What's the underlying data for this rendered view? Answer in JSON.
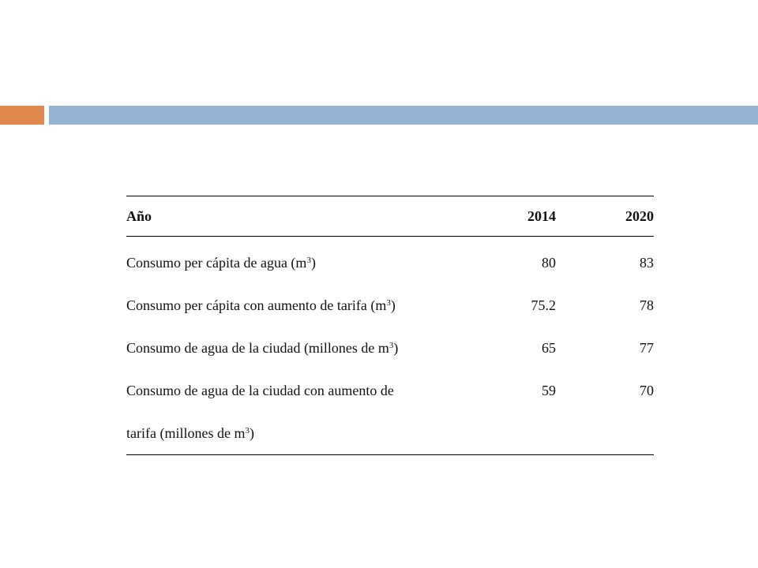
{
  "colors": {
    "accent_orange": "#e0894f",
    "accent_blue": "#95b3d3"
  },
  "table": {
    "header": {
      "label": "Año",
      "col1": "2014",
      "col2": "2020"
    },
    "rows": [
      {
        "label": "Consumo per cápita de agua (m",
        "sup": "3",
        "after": ")",
        "v2014": "80",
        "v2020": "83"
      },
      {
        "label": "Consumo per cápita con aumento de tarifa (m",
        "sup": "3",
        "after": ")",
        "v2014": "75.2",
        "v2020": "78"
      },
      {
        "label": "Consumo de agua de la ciudad (millones de m",
        "sup": "3",
        "after": ")",
        "v2014": "65",
        "v2020": "77"
      },
      {
        "label_line1": "Consumo de agua de la ciudad con aumento de",
        "label_line2": "tarifa (millones de m",
        "sup": "3",
        "after": ")",
        "v2014": "59",
        "v2020": "70"
      }
    ]
  }
}
